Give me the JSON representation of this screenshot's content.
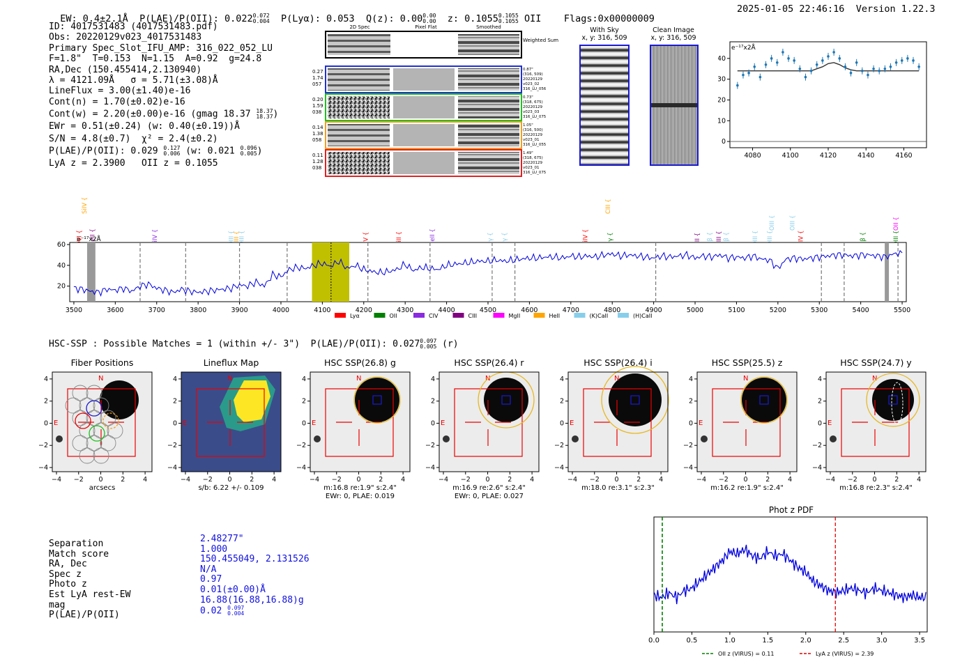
{
  "header": {
    "ew": "EW: 0.4±2.1Å",
    "plae": "P(LAE)/P(OII): 0.022",
    "plae_hi": "0.072",
    "plae_lo": "0.004",
    "plya": "P(Lyα): 0.053",
    "qz": "Q(z): 0.00",
    "qz_hi": "0.00",
    "qz_lo": "0.00",
    "z": "z: 0.1055",
    "z_hi": "0.1055",
    "z_lo": "0.1055",
    "z_line": "OII",
    "flags": "Flags:0x00000009",
    "timestamp": "2025-01-05 22:46:16",
    "version": "Version 1.22.3"
  },
  "info": {
    "lines": [
      "ID: 4017531483 (4017531483.pdf)",
      "Obs: 20220129v023_4017531483",
      "Primary Spec_Slot_IFU_AMP: 316_022_052_LU",
      "F=1.8\"  T=0.153  N=1.15  A=0.92  g=24.8",
      "RA,Dec (150.455414,2.130940)",
      "λ = 4121.09Å   σ = 5.71(±3.08)Å",
      "LineFlux = 3.00(±1.40)e-16",
      "Cont(n) = 1.70(±0.02)e-16"
    ],
    "contw": "Cont(w) = 2.20(±0.00)e-16 (gmag 18.37",
    "contw_hi": "18.37",
    "contw_lo": "18.37",
    "ewr": "EWr = 0.51(±0.24) (w: 0.40(±0.19))Å",
    "sn": "S/N = 4.8(±0.7)  χ² = 2.4(±0.2)",
    "plae2": "P(LAE)/P(OII): 0.029",
    "plae2_hi": "0.127",
    "plae2_lo": "0.006",
    "plae2_w": "(w: 0.021",
    "plae2_w_hi": "0.096",
    "plae2_w_lo": "0.005",
    "lya_z": "LyA z = 2.3900   OII z = 0.1055"
  },
  "cutouts": {
    "col_headers": [
      "2D Spec",
      "Pixel Flat",
      "Smoothed"
    ],
    "weighted_sum": "Weighted Sum",
    "rows": [
      {
        "left": [
          "0.27",
          "1.74",
          "057"
        ],
        "right": [
          "0.87\"",
          "(316, 509)",
          "20220129",
          "v023_02",
          "316_LU_056"
        ],
        "color": "#2030d0"
      },
      {
        "left": [
          "0.20",
          "1.59",
          "038"
        ],
        "right": [
          "0.73\"",
          "(318, 675)",
          "20220129",
          "v023_03",
          "316_LU_075"
        ],
        "color": "#20c020"
      },
      {
        "left": [
          "0.14",
          "1.38",
          "058"
        ],
        "right": [
          "1.05\"",
          "(316, 500)",
          "20220129",
          "v023_01",
          "316_LU_055"
        ],
        "color": "#f0a020"
      },
      {
        "left": [
          "0.11",
          "1.28",
          "038"
        ],
        "right": [
          "1.49\"",
          "(318, 675)",
          "20220129",
          "v023_01",
          "316_LU_075"
        ],
        "color": "#e02020"
      }
    ]
  },
  "sky": {
    "with_sky": "With Sky",
    "with_sky_xy": "x, y: 316, 509",
    "clean": "Clean Image",
    "clean_xy": "x, y: 316, 509"
  },
  "zoom_plot": {
    "unit_label": "e⁻¹⁷x2Å",
    "x_ticks": [
      "4080",
      "4100",
      "4120",
      "4140",
      "4160"
    ],
    "y_ticks": [
      "0",
      "10",
      "20",
      "30",
      "40"
    ]
  },
  "full_spectrum": {
    "unit_label": "e⁻¹⁷x2Å",
    "x_ticks": [
      "3500",
      "3600",
      "3700",
      "3800",
      "3900",
      "4000",
      "4100",
      "4200",
      "4300",
      "4400",
      "4500",
      "4600",
      "4700",
      "4800",
      "4900",
      "5000",
      "5100",
      "5200",
      "5300",
      "5400",
      "5500"
    ],
    "y_ticks": [
      "20",
      "40",
      "60"
    ],
    "legend": [
      {
        "label": "Lyα",
        "color": "#ff0000"
      },
      {
        "label": "OII",
        "color": "#008000"
      },
      {
        "label": "CIV",
        "color": "#8a2be2"
      },
      {
        "label": "CIII",
        "color": "#800080"
      },
      {
        "label": "MgII",
        "color": "#ff00ff"
      },
      {
        "label": "HeII",
        "color": "#ffa500"
      },
      {
        "label": "(K)CaII",
        "color": "#87ceeb"
      },
      {
        "label": "(H)CaII",
        "color": "#87ceeb"
      }
    ],
    "line_labels": [
      {
        "label": "OVI",
        "wave": 3518,
        "color": "#ff0000",
        "row": 2
      },
      {
        "label": "HeII",
        "wave": 3550,
        "color": "#800080",
        "row": 2
      },
      {
        "label": "SiIV",
        "wave": 3530,
        "color": "#ffa500",
        "row": 0
      },
      {
        "label": "SiIV",
        "wave": 3700,
        "color": "#8a2be2",
        "row": 2
      },
      {
        "label": "OIII",
        "wave": 3885,
        "color": "#87ceeb",
        "row": 2
      },
      {
        "label": "CIII",
        "wave": 3897,
        "color": "#ffa500",
        "row": 2
      },
      {
        "label": "OIII",
        "wave": 3910,
        "color": "#87ceeb",
        "row": 2
      },
      {
        "label": "NV",
        "wave": 4210,
        "color": "#ff0000",
        "row": 2
      },
      {
        "label": "SiII",
        "wave": 4290,
        "color": "#ff0000",
        "row": 2
      },
      {
        "label": "HeII",
        "wave": 4370,
        "color": "#8a2be2",
        "row": 2
      },
      {
        "label": "Hγ",
        "wave": 4510,
        "color": "#87ceeb",
        "row": 2
      },
      {
        "label": "Hγ",
        "wave": 4545,
        "color": "#87ceeb",
        "row": 2
      },
      {
        "label": "SiIV",
        "wave": 4740,
        "color": "#ff0000",
        "row": 2
      },
      {
        "label": "CIII",
        "wave": 4795,
        "color": "#ffa500",
        "row": 0
      },
      {
        "label": "Hγ",
        "wave": 4800,
        "color": "#008000",
        "row": 2
      },
      {
        "label": "CII",
        "wave": 5010,
        "color": "#800080",
        "row": 2
      },
      {
        "label": "Hβ",
        "wave": 5040,
        "color": "#87ceeb",
        "row": 2
      },
      {
        "label": "CIII",
        "wave": 5062,
        "color": "#800080",
        "row": 2
      },
      {
        "label": "Hβ",
        "wave": 5080,
        "color": "#87ceeb",
        "row": 2
      },
      {
        "label": "OIII",
        "wave": 5150,
        "color": "#87ceeb",
        "row": 2
      },
      {
        "label": "OIII",
        "wave": 5190,
        "color": "#87ceeb",
        "row": 1
      },
      {
        "label": "OIII",
        "wave": 5185,
        "color": "#87ceeb",
        "row": 2
      },
      {
        "label": "OIII",
        "wave": 5240,
        "color": "#87ceeb",
        "row": 1
      },
      {
        "label": "CIV",
        "wave": 5260,
        "color": "#ff0000",
        "row": 2
      },
      {
        "label": "Hβ",
        "wave": 5410,
        "color": "#008000",
        "row": 2
      },
      {
        "label": "OII",
        "wave": 5490,
        "color": "#ff00ff",
        "row": 1
      },
      {
        "label": "OIII",
        "wave": 5490,
        "color": "#008000",
        "row": 2
      }
    ]
  },
  "matches": {
    "summary": "HSC-SSP : Possible Matches = 1 (within +/- 3\")  P(LAE)/P(OII): 0.027",
    "summary_hi": "0.097",
    "summary_lo": "0.005",
    "summary_band": "(r)",
    "panels": [
      {
        "title": "Fiber Positions",
        "caption1": "arcsecs",
        "caption2": ""
      },
      {
        "title": "Lineflux Map",
        "caption1": "s/b: 6.22 +/- 0.109",
        "caption2": ""
      },
      {
        "title": "HSC SSP(26.8) g",
        "caption1": "m:16.8   re:1.9\"   s:2.4\"",
        "caption2": "EWr: 0, PLAE: 0.019"
      },
      {
        "title": "HSC SSP(26.4) r",
        "caption1": "m:16.9   re:2.6\"   s:2.4\"",
        "caption2": "EWr: 0, PLAE: 0.027"
      },
      {
        "title": "HSC SSP(26.4) i",
        "caption1": "m:18.0   re:3.1\"   s:2.3\"",
        "caption2": ""
      },
      {
        "title": "HSC SSP(25.5) z",
        "caption1": "m:16.2   re:1.9\"   s:2.4\"",
        "caption2": ""
      },
      {
        "title": "HSC SSP(24.7) y",
        "caption1": "m:16.8   re:2.3\"   s:2.4\"",
        "caption2": ""
      }
    ],
    "axis_ticks": [
      "−4",
      "−2",
      "0",
      "2",
      "4"
    ],
    "north": "N",
    "east": "E"
  },
  "match_table": {
    "labels": [
      "Separation",
      "Match score",
      "RA, Dec",
      "Spec z",
      "Photo z",
      "Est LyA rest-EW",
      "mag",
      "P(LAE)/P(OII)"
    ],
    "values": [
      "2.48277\"",
      "1.000",
      "150.455049, 2.131526",
      "N/A",
      "0.97",
      "0.01(±0.00)Å",
      "16.88(16.88,16.88)g",
      "0.02"
    ],
    "plae_hi": "0.097",
    "plae_lo": "0.004"
  },
  "photz": {
    "title": "Phot z PDF",
    "x_ticks": [
      "0.0",
      "0.5",
      "1.0",
      "1.5",
      "2.0",
      "2.5",
      "3.0",
      "3.5"
    ],
    "oii_label": "OII z (VIRUS) = 0.11",
    "lya_label": "LyA z (VIRUS) = 2.39",
    "oii_z": 0.11,
    "lya_z": 2.39
  },
  "chart_data": [
    {
      "type": "line",
      "title": "",
      "xlabel": "",
      "ylabel": "e-17x2Å",
      "xlim": [
        3490,
        5510
      ],
      "ylim": [
        5,
        62
      ],
      "x": [
        3500,
        3520,
        3540,
        3560,
        3580,
        3600,
        3620,
        3640,
        3660,
        3680,
        3700,
        3720,
        3740,
        3760,
        3780,
        3800,
        3820,
        3840,
        3860,
        3880,
        3900,
        3920,
        3940,
        3960,
        3980,
        4000,
        4020,
        4040,
        4060,
        4080,
        4100,
        4120,
        4140,
        4160,
        4180,
        4200,
        4220,
        4240,
        4260,
        4280,
        4300,
        4320,
        4340,
        4360,
        4380,
        4400,
        4420,
        4440,
        4460,
        4480,
        4500,
        4520,
        4540,
        4560,
        4580,
        4600,
        4620,
        4640,
        4660,
        4680,
        4700,
        4720,
        4740,
        4760,
        4780,
        4800,
        4820,
        4840,
        4860,
        4880,
        4900,
        4920,
        4940,
        4960,
        4980,
        5000,
        5020,
        5040,
        5060,
        5080,
        5100,
        5120,
        5140,
        5160,
        5180,
        5200,
        5220,
        5240,
        5260,
        5280,
        5300,
        5320,
        5340,
        5360,
        5380,
        5400,
        5420,
        5440,
        5460,
        5480,
        5500
      ],
      "series": [
        {
          "name": "spectrum",
          "values": [
            18,
            17,
            15,
            14,
            17,
            16,
            18,
            15,
            20,
            22,
            18,
            16,
            14,
            17,
            15,
            14,
            15,
            16,
            17,
            18,
            21,
            20,
            24,
            20,
            31,
            29,
            36,
            38,
            37,
            40,
            42,
            39,
            44,
            37,
            40,
            36,
            34,
            33,
            34,
            36,
            41,
            35,
            38,
            37,
            36,
            40,
            41,
            42,
            43,
            44,
            44,
            45,
            44,
            45,
            46,
            47,
            47,
            48,
            48,
            47,
            49,
            48,
            49,
            48,
            50,
            51,
            49,
            50,
            49,
            48,
            47,
            49,
            48,
            49,
            50,
            47,
            49,
            48,
            50,
            47,
            48,
            47,
            49,
            46,
            45,
            37,
            46,
            47,
            46,
            47,
            48,
            49,
            50,
            50,
            49,
            50,
            50,
            49,
            48,
            51,
            52
          ]
        }
      ]
    },
    {
      "type": "scatter",
      "title": "",
      "xlabel": "",
      "ylabel": "e-17x2Å",
      "xlim": [
        4068,
        4172
      ],
      "ylim": [
        -3,
        48
      ],
      "x": [
        4072,
        4075,
        4078,
        4081,
        4084,
        4087,
        4090,
        4093,
        4096,
        4099,
        4102,
        4105,
        4108,
        4111,
        4114,
        4117,
        4120,
        4123,
        4126,
        4129,
        4132,
        4135,
        4138,
        4141,
        4144,
        4147,
        4150,
        4153,
        4156,
        4159,
        4162,
        4165,
        4168
      ],
      "series": [
        {
          "name": "data",
          "values": [
            27,
            32,
            33,
            36,
            31,
            37,
            40,
            38,
            43,
            40,
            39,
            35,
            31,
            34,
            37,
            39,
            41,
            43,
            40,
            36,
            33,
            38,
            34,
            32,
            35,
            34,
            35,
            36,
            38,
            39,
            40,
            39,
            36
          ]
        },
        {
          "name": "model",
          "values": [
            34,
            34,
            34,
            34,
            34,
            34,
            34,
            34,
            34,
            34,
            34,
            34,
            34,
            34,
            35,
            36,
            37.5,
            38,
            37,
            35.5,
            34.5,
            34,
            34,
            34,
            34,
            34,
            34,
            34,
            34,
            34,
            34,
            34,
            34
          ]
        }
      ]
    },
    {
      "type": "line",
      "title": "Phot z PDF",
      "xlabel": "",
      "ylabel": "",
      "xlim": [
        0,
        3.6
      ],
      "ylim": [
        0,
        1
      ],
      "x": [
        0.0,
        0.1,
        0.2,
        0.3,
        0.4,
        0.5,
        0.6,
        0.7,
        0.8,
        0.9,
        1.0,
        1.1,
        1.2,
        1.3,
        1.4,
        1.5,
        1.6,
        1.7,
        1.8,
        1.9,
        2.0,
        2.1,
        2.2,
        2.3,
        2.4,
        2.5,
        2.6,
        2.7,
        2.8,
        2.9,
        3.0,
        3.1,
        3.2,
        3.3,
        3.4,
        3.5,
        3.6
      ],
      "series": [
        {
          "name": "PDF",
          "values": [
            0.32,
            0.3,
            0.34,
            0.3,
            0.36,
            0.38,
            0.44,
            0.5,
            0.56,
            0.62,
            0.7,
            0.68,
            0.72,
            0.66,
            0.64,
            0.7,
            0.66,
            0.68,
            0.62,
            0.56,
            0.52,
            0.44,
            0.4,
            0.36,
            0.34,
            0.36,
            0.38,
            0.36,
            0.34,
            0.38,
            0.36,
            0.34,
            0.32,
            0.3,
            0.32,
            0.3,
            0.3
          ]
        }
      ]
    }
  ]
}
